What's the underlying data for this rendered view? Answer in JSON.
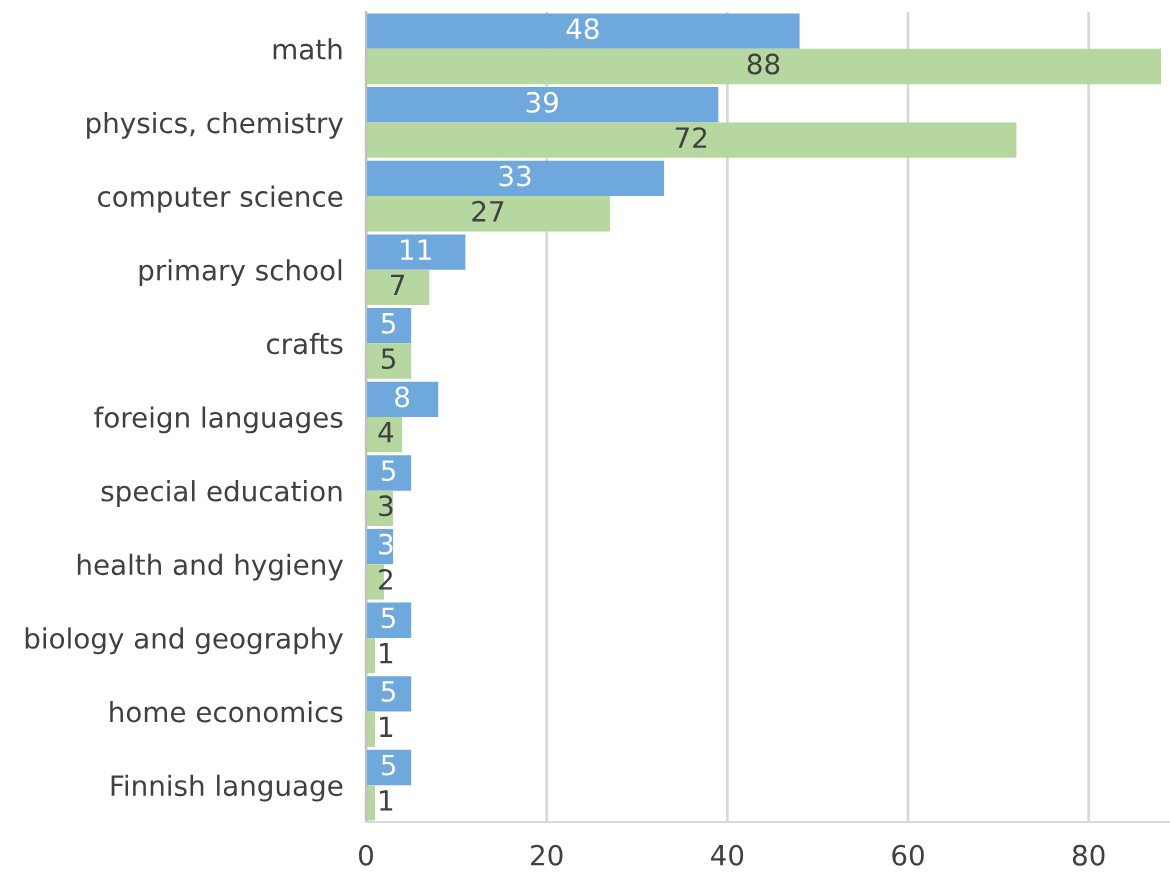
{
  "chart_data": {
    "type": "bar",
    "orientation": "horizontal",
    "categories": [
      "math",
      "physics, chemistry",
      "computer science",
      "primary school",
      "crafts",
      "foreign languages",
      "special education",
      "health and hygieny",
      "biology and geography",
      "home economics",
      "Finnish language"
    ],
    "series": [
      {
        "color": "#6fa8dc",
        "values": [
          48,
          39,
          33,
          11,
          5,
          8,
          5,
          3,
          5,
          5,
          5
        ]
      },
      {
        "color": "#b6d7a0",
        "values": [
          88,
          72,
          27,
          7,
          5,
          4,
          3,
          2,
          1,
          1,
          1
        ]
      }
    ],
    "xlim": [
      0,
      89
    ],
    "xticks": [
      0,
      20,
      40,
      60,
      80
    ],
    "grid": "x",
    "data_labels": true
  }
}
